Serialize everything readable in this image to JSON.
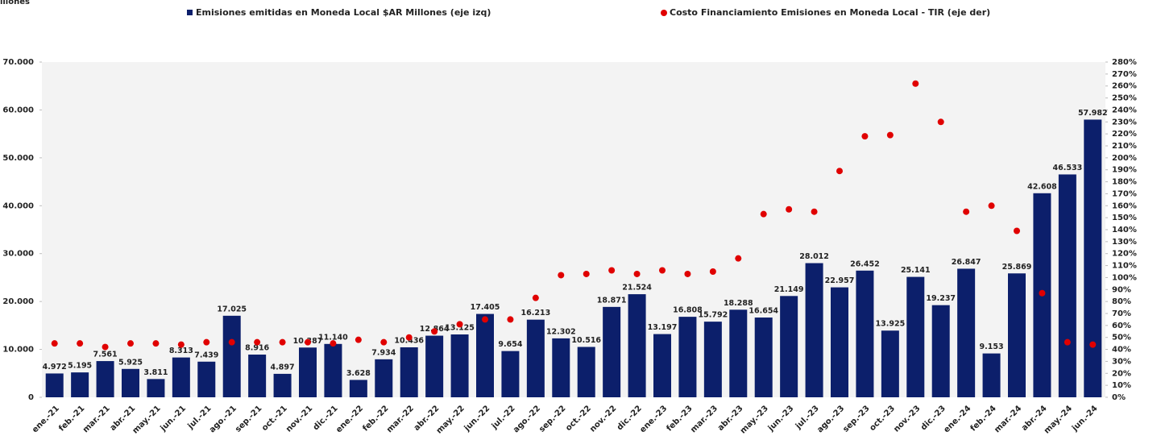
{
  "chart_data": {
    "type": "bar",
    "y_axis_label": "Millones",
    "categories": [
      "ene.-21",
      "feb.-21",
      "mar.-21",
      "abr.-21",
      "may.-21",
      "jun.-21",
      "jul.-21",
      "ago.-21",
      "sep.-21",
      "oct.-21",
      "nov.-21",
      "dic.-21",
      "ene.-22",
      "feb.-22",
      "mar.-22",
      "abr.-22",
      "may.-22",
      "jun.-22",
      "jul.-22",
      "ago.-22",
      "sep.-22",
      "oct.-22",
      "nov.-22",
      "dic.-22",
      "ene.-23",
      "feb.-23",
      "mar.-23",
      "abr.-23",
      "may.-23",
      "jun.-23",
      "jul.-23",
      "ago.-23",
      "sep.-23",
      "oct.-23",
      "nov.-23",
      "dic.-23",
      "ene.-24",
      "feb.-24",
      "mar.-24",
      "abr.-24",
      "may.-24",
      "jun.-24"
    ],
    "series": [
      {
        "name": "Emisiones emitidas en Moneda Local $AR Millones (eje izq)",
        "type": "bar",
        "color": "#0c1f6b",
        "values": [
          4972,
          5195,
          7561,
          5925,
          3811,
          8313,
          7439,
          17025,
          8916,
          4897,
          10387,
          11140,
          3628,
          7934,
          10436,
          12864,
          13125,
          17405,
          9654,
          16213,
          12302,
          10516,
          18871,
          21524,
          13197,
          16808,
          15792,
          18288,
          16654,
          21149,
          28012,
          22957,
          26452,
          13925,
          25141,
          19237,
          26847,
          9153,
          25869,
          42608,
          46533,
          57982
        ],
        "value_labels": [
          "4.972",
          "5.195",
          "7.561",
          "5.925",
          "3.811",
          "8.313",
          "7.439",
          "17.025",
          "8.916",
          "4.897",
          "10.387",
          "11.140",
          "3.628",
          "7.934",
          "10.436",
          "12.864",
          "13.125",
          "17.405",
          "9.654",
          "16.213",
          "12.302",
          "10.516",
          "18.871",
          "21.524",
          "13.197",
          "16.808",
          "15.792",
          "18.288",
          "16.654",
          "21.149",
          "28.012",
          "22.957",
          "26.452",
          "13.925",
          "25.141",
          "19.237",
          "26.847",
          "9.153",
          "25.869",
          "42.608",
          "46.533",
          "57.982"
        ]
      },
      {
        "name": "Costo Financiamiento Emisiones en Moneda Local - TIR (eje der)",
        "type": "scatter",
        "axis": "y2",
        "color": "#e00000",
        "values": [
          45,
          45,
          42,
          45,
          45,
          44,
          46,
          46,
          46,
          46,
          46,
          45,
          48,
          46,
          50,
          55,
          61,
          65,
          65,
          83,
          102,
          103,
          106,
          103,
          106,
          103,
          105,
          116,
          153,
          157,
          155,
          189,
          218,
          219,
          262,
          230,
          155,
          160,
          139,
          87,
          46,
          44
        ]
      }
    ],
    "ylim": [
      0,
      70000
    ],
    "yticks": [
      0,
      {
        "value": 10000,
        "label": "10.000"
      },
      {
        "value": 20000,
        "label": "20.000"
      },
      {
        "value": 30000,
        "label": "30.000"
      },
      {
        "value": 40000,
        "label": "40.000"
      },
      {
        "value": 50000,
        "label": "50.000"
      },
      {
        "value": 60000,
        "label": "60.000"
      },
      {
        "value": 70000,
        "label": "70.000"
      }
    ],
    "y2lim": [
      0,
      280
    ],
    "y2ticks": [
      {
        "value": 0,
        "label": "0%"
      },
      {
        "value": 10,
        "label": "10%"
      },
      {
        "value": 20,
        "label": "20%"
      },
      {
        "value": 30,
        "label": "30%"
      },
      {
        "value": 40,
        "label": "40%"
      },
      {
        "value": 50,
        "label": "50%"
      },
      {
        "value": 60,
        "label": "60%"
      },
      {
        "value": 70,
        "label": "70%"
      },
      {
        "value": 80,
        "label": "80%"
      },
      {
        "value": 90,
        "label": "90%"
      },
      {
        "value": 100,
        "label": "100%"
      },
      {
        "value": 110,
        "label": "110%"
      },
      {
        "value": 120,
        "label": "120%"
      },
      {
        "value": 130,
        "label": "130%"
      },
      {
        "value": 140,
        "label": "140%"
      },
      {
        "value": 150,
        "label": "150%"
      },
      {
        "value": 160,
        "label": "160%"
      },
      {
        "value": 170,
        "label": "170%"
      },
      {
        "value": 180,
        "label": "180%"
      },
      {
        "value": 190,
        "label": "190%"
      },
      {
        "value": 200,
        "label": "200%"
      },
      {
        "value": 210,
        "label": "210%"
      },
      {
        "value": 220,
        "label": "220%"
      },
      {
        "value": 230,
        "label": "230%"
      },
      {
        "value": 240,
        "label": "240%"
      },
      {
        "value": 250,
        "label": "250%"
      },
      {
        "value": 260,
        "label": "260%"
      },
      {
        "value": 270,
        "label": "270%"
      },
      {
        "value": 280,
        "label": "280%"
      }
    ],
    "legend": "top"
  }
}
